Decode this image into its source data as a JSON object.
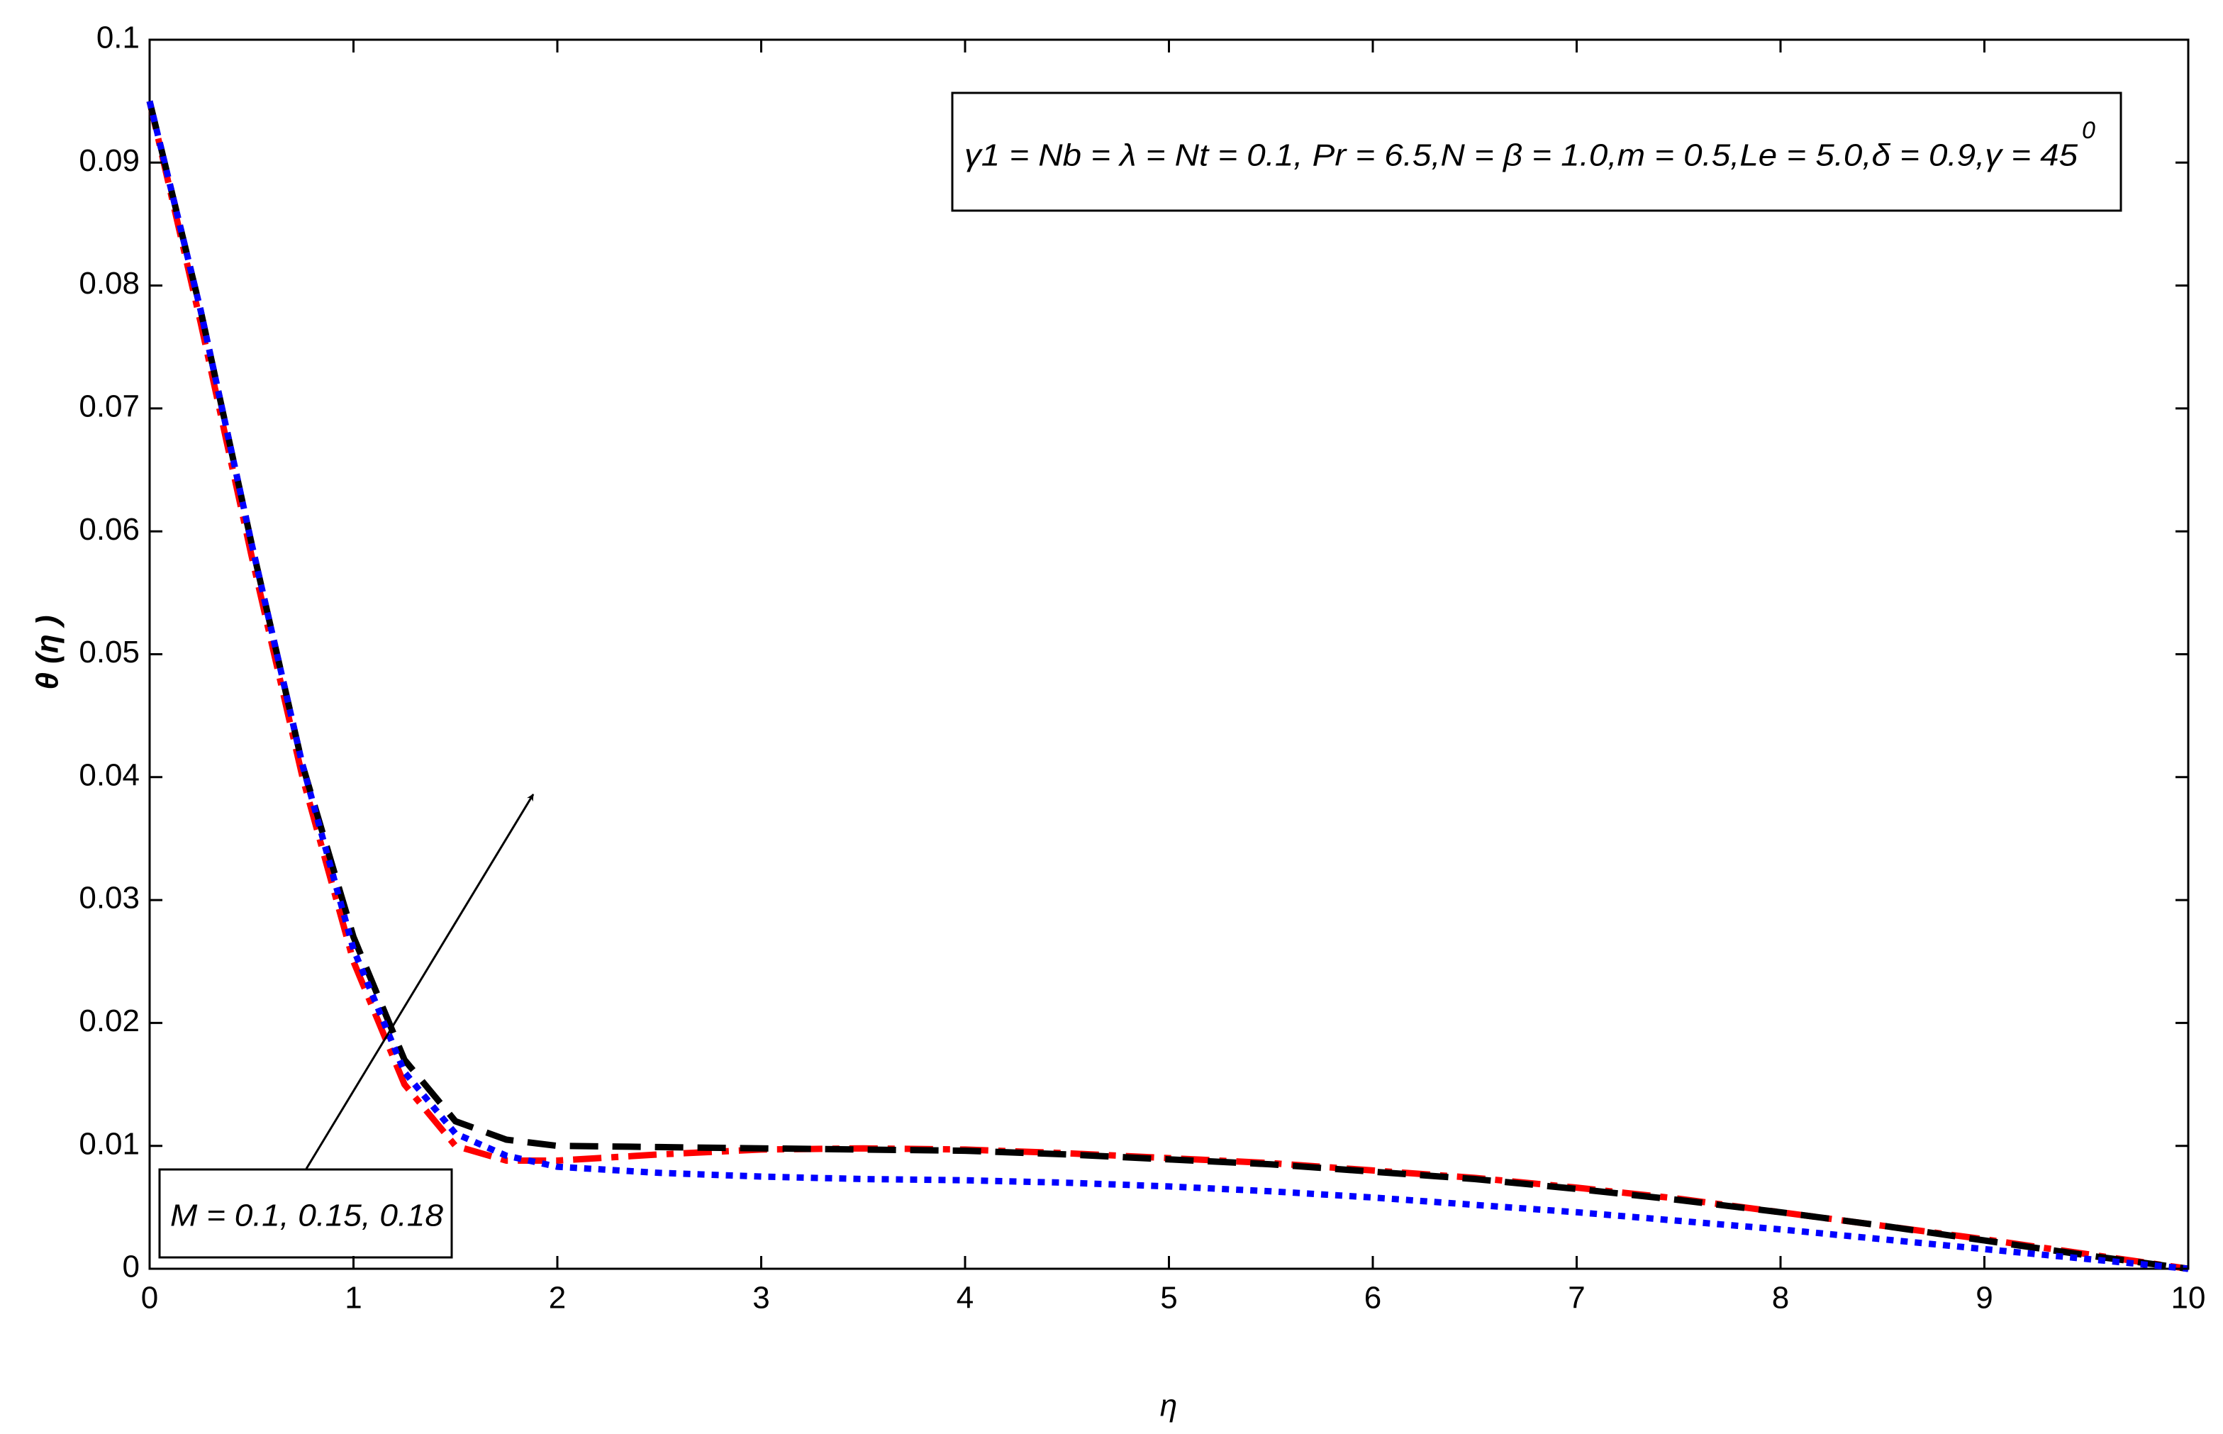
{
  "chart_data": {
    "type": "line",
    "xlabel": "η",
    "ylabel": "θ (η )",
    "x": [
      0,
      0.25,
      0.5,
      0.75,
      1,
      1.25,
      1.5,
      1.75,
      2,
      2.5,
      3,
      3.5,
      4,
      4.5,
      5,
      5.5,
      6,
      6.5,
      7,
      7.5,
      8,
      8.5,
      9,
      9.5,
      10
    ],
    "series": [
      {
        "color": "#ff0000",
        "linestyle": "dashdot",
        "values": [
          0.095,
          0.077,
          0.058,
          0.04,
          0.025,
          0.015,
          0.01,
          0.0088,
          0.0088,
          0.0093,
          0.0097,
          0.0098,
          0.0097,
          0.0094,
          0.009,
          0.0086,
          0.008,
          0.0074,
          0.0066,
          0.0057,
          0.0046,
          0.0035,
          0.0024,
          0.0012,
          0
        ]
      },
      {
        "color": "#000000",
        "linestyle": "dashed",
        "values": [
          0.095,
          0.078,
          0.059,
          0.041,
          0.027,
          0.017,
          0.012,
          0.0105,
          0.01,
          0.0099,
          0.0098,
          0.0097,
          0.0096,
          0.0093,
          0.0089,
          0.0085,
          0.0079,
          0.0073,
          0.0065,
          0.0056,
          0.0046,
          0.0035,
          0.0023,
          0.0011,
          0
        ]
      },
      {
        "color": "#0000ff",
        "linestyle": "dotted",
        "values": [
          0.095,
          0.078,
          0.059,
          0.041,
          0.026,
          0.016,
          0.011,
          0.0092,
          0.0083,
          0.0078,
          0.0075,
          0.0073,
          0.0072,
          0.007,
          0.0067,
          0.0063,
          0.0058,
          0.0052,
          0.0046,
          0.0039,
          0.0032,
          0.0024,
          0.0016,
          0.0008,
          0
        ]
      }
    ],
    "xlim": [
      0,
      10
    ],
    "xticks": [
      0,
      1,
      2,
      3,
      4,
      5,
      6,
      7,
      8,
      9,
      10
    ],
    "ylim": [
      0,
      0.1
    ],
    "yticks": [
      0,
      0.01,
      0.02,
      0.03,
      0.04,
      0.05,
      0.06,
      0.07,
      0.08,
      0.09,
      0.1
    ],
    "annotations": [
      {
        "text": "γ1 = Nb = λ = Nt = 0.1, Pr = 6.5,N = β = 1.0,m = 0.5,Le = 5.0,δ = 0.9,γ = 45",
        "sup": "0"
      },
      {
        "text": "M = 0.1, 0.15, 0.18"
      }
    ]
  }
}
